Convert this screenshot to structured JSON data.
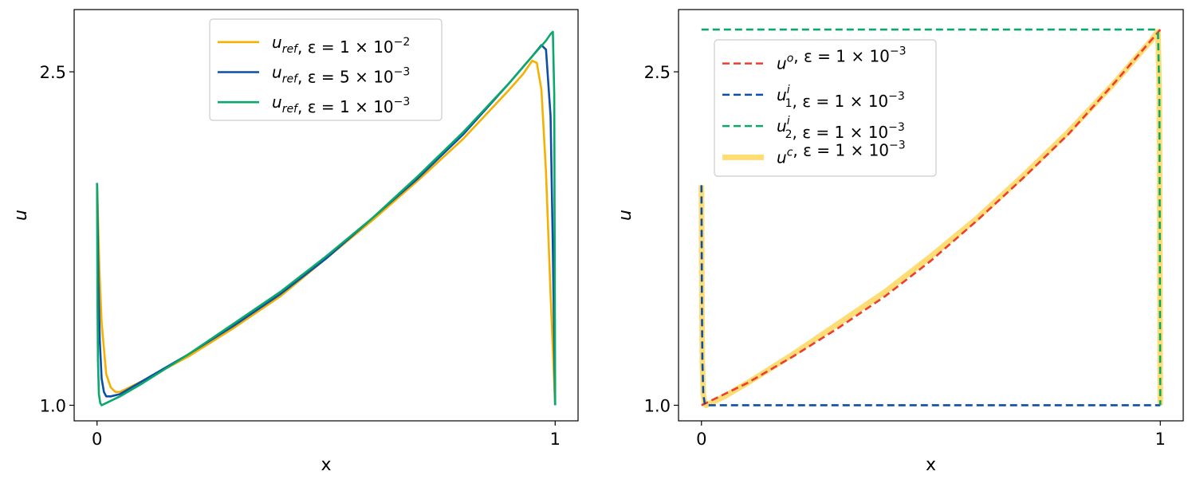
{
  "chart_data": [
    {
      "type": "line",
      "title": "",
      "xlabel": "x",
      "ylabel": "u",
      "xlim": [
        -0.05,
        1.05
      ],
      "ylim": [
        0.93,
        2.78
      ],
      "xticks": [
        0,
        1
      ],
      "xtick_labels": [
        "0",
        "1"
      ],
      "yticks": [
        1.0,
        2.5
      ],
      "ytick_labels": [
        "1.0",
        "2.5"
      ],
      "grid": false,
      "legend_position": "upper-center",
      "series": [
        {
          "name": "u_ref, ε = 1 × 10^-2",
          "label": {
            "base": "u",
            "sub": "ref",
            "sup": "",
            "eps": "ε = 1 × 10",
            "exp": "−2"
          },
          "color": "#F5B000",
          "style": "solid",
          "x": [
            0,
            0.005,
            0.01,
            0.02,
            0.03,
            0.04,
            0.05,
            0.1,
            0.2,
            0.3,
            0.4,
            0.5,
            0.6,
            0.7,
            0.8,
            0.9,
            0.93,
            0.95,
            0.96,
            0.97,
            0.98,
            0.99,
            1.0
          ],
          "values": [
            2.0,
            1.62,
            1.37,
            1.14,
            1.08,
            1.06,
            1.06,
            1.11,
            1.22,
            1.35,
            1.49,
            1.66,
            1.83,
            2.01,
            2.2,
            2.42,
            2.49,
            2.55,
            2.54,
            2.42,
            2.05,
            1.5,
            1.0
          ]
        },
        {
          "name": "u_ref, ε = 5 × 10^-3",
          "label": {
            "base": "u",
            "sub": "ref",
            "sup": "",
            "eps": "ε = 5 × 10",
            "exp": "−3"
          },
          "color": "#0D4EA6",
          "style": "solid",
          "x": [
            0,
            0.003,
            0.006,
            0.01,
            0.015,
            0.02,
            0.03,
            0.05,
            0.1,
            0.2,
            0.3,
            0.4,
            0.5,
            0.6,
            0.7,
            0.8,
            0.9,
            0.95,
            0.97,
            0.98,
            0.99,
            0.995,
            1.0
          ],
          "values": [
            2.0,
            1.56,
            1.29,
            1.12,
            1.06,
            1.04,
            1.04,
            1.05,
            1.11,
            1.23,
            1.36,
            1.5,
            1.66,
            1.84,
            2.02,
            2.22,
            2.45,
            2.57,
            2.62,
            2.6,
            2.3,
            1.7,
            1.0
          ]
        },
        {
          "name": "u_ref, ε = 1 × 10^-3",
          "label": {
            "base": "u",
            "sub": "ref",
            "sup": "",
            "eps": "ε = 1 × 10",
            "exp": "−3"
          },
          "color": "#0BA86C",
          "style": "solid",
          "x": [
            0,
            0.001,
            0.002,
            0.004,
            0.007,
            0.01,
            0.02,
            0.05,
            0.1,
            0.2,
            0.3,
            0.4,
            0.5,
            0.6,
            0.7,
            0.8,
            0.9,
            0.95,
            0.98,
            0.99,
            0.995,
            0.998,
            1.0
          ],
          "values": [
            2.0,
            1.45,
            1.2,
            1.05,
            1.01,
            1.0,
            1.01,
            1.04,
            1.1,
            1.23,
            1.37,
            1.51,
            1.67,
            1.84,
            2.03,
            2.23,
            2.45,
            2.57,
            2.64,
            2.67,
            2.68,
            2.4,
            1.0
          ]
        }
      ]
    },
    {
      "type": "line",
      "title": "",
      "xlabel": "x",
      "ylabel": "u",
      "xlim": [
        -0.05,
        1.05
      ],
      "ylim": [
        0.93,
        2.78
      ],
      "xticks": [
        0,
        1
      ],
      "xtick_labels": [
        "0",
        "1"
      ],
      "yticks": [
        1.0,
        2.5
      ],
      "ytick_labels": [
        "1.0",
        "2.5"
      ],
      "grid": false,
      "legend_position": "upper-left",
      "series": [
        {
          "name": "u^c, ε = 1 × 10^-3",
          "label": {
            "base": "u",
            "sub": "",
            "sup": "c",
            "eps": "ε = 1 × 10",
            "exp": "−3"
          },
          "color": "#FFD966",
          "style": "solid-thick",
          "legend_order": 3,
          "x": [
            0,
            0.001,
            0.002,
            0.004,
            0.007,
            0.01,
            0.05,
            0.1,
            0.2,
            0.3,
            0.4,
            0.5,
            0.6,
            0.7,
            0.8,
            0.9,
            0.95,
            0.98,
            0.99,
            0.995,
            0.998,
            1.0
          ],
          "values": [
            1.99,
            1.45,
            1.2,
            1.05,
            1.01,
            1.0,
            1.04,
            1.1,
            1.23,
            1.37,
            1.51,
            1.67,
            1.84,
            2.03,
            2.23,
            2.45,
            2.57,
            2.64,
            2.67,
            2.68,
            2.4,
            1.0
          ]
        },
        {
          "name": "u^o, ε = 1 × 10^-3",
          "label": {
            "base": "u",
            "sub": "",
            "sup": "o",
            "eps": "ε = 1 × 10",
            "exp": "−3"
          },
          "color": "#F03C2E",
          "style": "dashed",
          "legend_order": 0,
          "x": [
            0,
            0.1,
            0.2,
            0.3,
            0.4,
            0.5,
            0.6,
            0.7,
            0.8,
            0.9,
            1.0
          ],
          "values": [
            1.0,
            1.1,
            1.22,
            1.35,
            1.49,
            1.65,
            1.83,
            2.02,
            2.22,
            2.45,
            2.69
          ]
        },
        {
          "name": "u_1^i, ε = 1 × 10^-3",
          "label": {
            "base": "u",
            "sub": "1",
            "sup": "i",
            "eps": "ε = 1 × 10",
            "exp": "−3"
          },
          "color": "#0D4EA6",
          "style": "dashed",
          "legend_order": 1,
          "x": [
            0,
            0.001,
            0.002,
            0.004,
            0.007,
            0.01,
            0.05,
            0.2,
            0.5,
            0.8,
            1.0
          ],
          "values": [
            1.99,
            1.45,
            1.2,
            1.05,
            1.01,
            1.0,
            1.0,
            1.0,
            1.0,
            1.0,
            1.0
          ]
        },
        {
          "name": "u_2^i, ε = 1 × 10^-3",
          "label": {
            "base": "u",
            "sub": "2",
            "sup": "i",
            "eps": "ε = 1 × 10",
            "exp": "−3"
          },
          "color": "#0BA86C",
          "style": "dashed",
          "legend_order": 2,
          "x": [
            0,
            0.2,
            0.5,
            0.8,
            0.99,
            0.995,
            0.998,
            1.0
          ],
          "values": [
            2.69,
            2.69,
            2.69,
            2.69,
            2.69,
            2.68,
            2.4,
            1.0
          ]
        }
      ]
    }
  ]
}
